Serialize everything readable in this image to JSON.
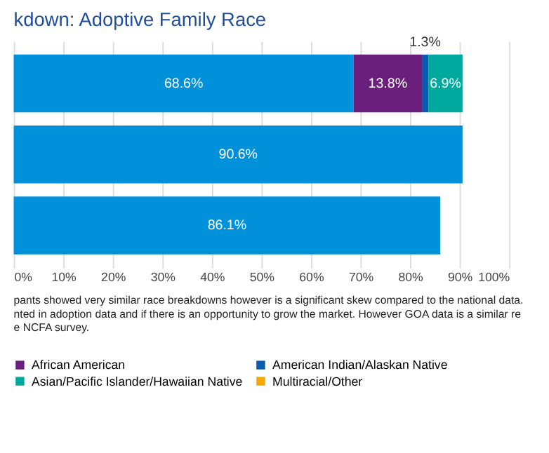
{
  "chart_data": {
    "type": "bar",
    "orientation": "horizontal",
    "stacked": true,
    "title": "kdown: Adoptive Family Race",
    "categories": [
      null,
      null,
      null
    ],
    "series": [
      {
        "color": "#0091da",
        "values": [
          68.6,
          90.6,
          86.1
        ],
        "value_labels": [
          "68.6%",
          "90.6%",
          "86.1%"
        ]
      },
      {
        "name": "African American",
        "color": "#6b1f7c",
        "values": [
          13.8,
          null,
          null
        ],
        "value_labels": [
          "13.8%",
          null,
          null
        ]
      },
      {
        "name": "American Indian/Alaskan Native",
        "color": "#0a5cb0",
        "values": [
          1.3,
          null,
          null
        ],
        "value_labels": [
          "1.3%",
          null,
          null
        ]
      },
      {
        "name": "Asian/Pacific Islander/Hawaiian Native",
        "color": "#00a99d",
        "values": [
          6.9,
          null,
          null
        ],
        "value_labels": [
          "6.9%",
          null,
          null
        ]
      },
      {
        "name": "Multiracial/Other",
        "color": "#f5a800",
        "values": [
          null,
          null,
          null
        ]
      }
    ],
    "xlim": [
      0,
      100
    ],
    "xticks": [
      {
        "value": 0,
        "label": "0%"
      },
      {
        "value": 10,
        "label": "10%"
      },
      {
        "value": 20,
        "label": "20%"
      },
      {
        "value": 30,
        "label": "30%"
      },
      {
        "value": 40,
        "label": "40%"
      },
      {
        "value": 50,
        "label": "50%"
      },
      {
        "value": 60,
        "label": "60%"
      },
      {
        "value": 70,
        "label": "70%"
      },
      {
        "value": 80,
        "label": "80%"
      },
      {
        "value": 90,
        "label": "90%"
      },
      {
        "value": 100,
        "label": "100%"
      }
    ],
    "grid": "x",
    "legend": "bottom",
    "annotations": [
      "pants showed very similar race breakdowns however is a significant skew compared to the national data.",
      "nted in adoption data and if there is an opportunity to grow the market. However GOA data is a similar re",
      "e NCFA survey."
    ]
  }
}
